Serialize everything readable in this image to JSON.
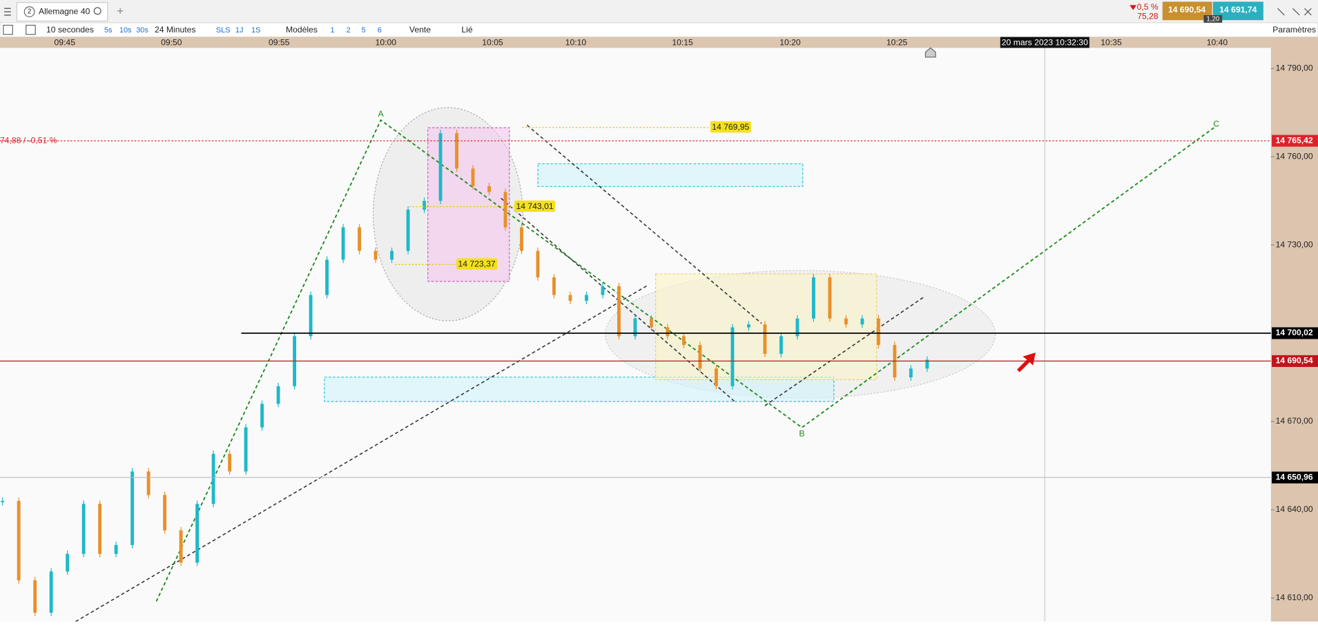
{
  "toolbar": {
    "tab_number": "2",
    "instrument": "Allemagne 40",
    "interval": "10 secondes",
    "interval_buttons": [
      "5s",
      "10s",
      "30s"
    ],
    "span": "24 Minutes",
    "range_buttons": [
      "SLS",
      "1J",
      "1S"
    ],
    "models": "Modèles",
    "layout_buttons": [
      "1",
      "2",
      "5",
      "6"
    ],
    "sell": "Vente",
    "linked": "Lié",
    "settings": "Paramètres"
  },
  "quote": {
    "change_pct": "0,5 %",
    "change": "75,28",
    "bid": "14 690,54",
    "spread": "1,20",
    "ask": "14 691,74"
  },
  "chart_data": {
    "type": "candlestick",
    "up_color": "#1fb8c9",
    "down_color": "#e8902a",
    "values": [
      14643,
      14616,
      14605,
      14619,
      14625,
      14642,
      14625,
      14628,
      14653,
      14645,
      14633,
      14622,
      14642,
      14659,
      14653,
      14668,
      14676,
      14682,
      14699,
      14713,
      14725,
      14736,
      14728,
      14725,
      14728,
      14742,
      14745,
      14768,
      14756,
      14750,
      14748,
      14736,
      14728,
      14719,
      14713,
      14711,
      14713,
      14716,
      14699,
      14705,
      14702,
      14699,
      14696,
      14688,
      14682,
      14702,
      14703,
      14693,
      14699,
      14705,
      14719,
      14705,
      14703,
      14705,
      14696,
      14685,
      14688,
      14691
    ],
    "ylim": [
      14602,
      14797
    ],
    "yticks": [
      {
        "value": 14790,
        "label": "14 790,00"
      },
      {
        "value": 14760,
        "label": "14 760,00"
      },
      {
        "value": 14730,
        "label": "14 730,00"
      },
      {
        "value": 14670,
        "label": "14 670,00"
      },
      {
        "value": 14640,
        "label": "14 640,00"
      },
      {
        "value": 14610,
        "label": "14 610,00"
      }
    ],
    "xticks": [
      "09:45",
      "09:50",
      "09:55",
      "10:00",
      "10:05",
      "10:10",
      "10:15",
      "10:20",
      "10:25",
      "10:35",
      "10:40"
    ],
    "price_levels": [
      {
        "value": 14765.42,
        "label": "14 765,42",
        "color": "#e0202a"
      },
      {
        "value": 14700.02,
        "label": "14 700,02",
        "color": "#000000"
      },
      {
        "value": 14690.54,
        "label": "14 690,54",
        "color": "#c0141c"
      },
      {
        "value": 14650.96,
        "label": "14 650,96",
        "color": "#000000"
      }
    ],
    "annotations": [
      {
        "value": 14769.95,
        "label": "14 769,95"
      },
      {
        "value": 14743.01,
        "label": "14 743,01"
      },
      {
        "value": 14723.37,
        "label": "14 723,37"
      }
    ],
    "wave_labels": [
      "A",
      "B",
      "C"
    ],
    "reference_label": "74,88 / -0,51 %",
    "cursor_time": "20 mars 2023 10:32:30"
  }
}
